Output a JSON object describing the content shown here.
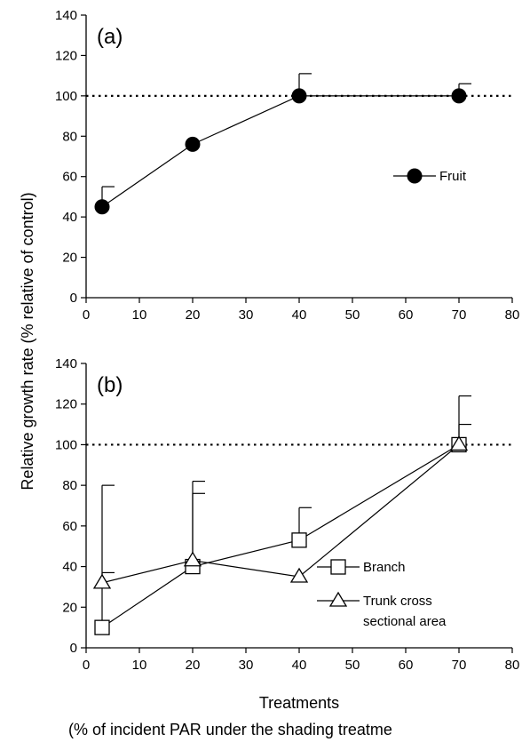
{
  "figure": {
    "ylabel": "Relative growth rate (% relative of control)",
    "xlabel_line1": "Treatments",
    "xlabel_line2": "(% of incident PAR under the shading treatme"
  },
  "chart_data": [
    {
      "type": "line",
      "panel_label": "(a)",
      "xlim": [
        0,
        80
      ],
      "ylim": [
        0,
        140
      ],
      "xticks": [
        0,
        10,
        20,
        30,
        40,
        50,
        60,
        70,
        80
      ],
      "yticks": [
        0,
        20,
        40,
        60,
        80,
        100,
        120,
        140
      ],
      "reference_line": 100,
      "series": [
        {
          "name": "Fruit",
          "marker": "filled-circle",
          "x": [
            3,
            20,
            40,
            70
          ],
          "y": [
            45,
            76,
            100,
            100
          ],
          "err_upper": [
            55,
            null,
            111,
            106
          ]
        }
      ]
    },
    {
      "type": "line",
      "panel_label": "(b)",
      "xlim": [
        0,
        80
      ],
      "ylim": [
        0,
        140
      ],
      "xticks": [
        0,
        10,
        20,
        30,
        40,
        50,
        60,
        70,
        80
      ],
      "yticks": [
        0,
        20,
        40,
        60,
        80,
        100,
        120,
        140
      ],
      "reference_line": 100,
      "series": [
        {
          "name": "Branch",
          "marker": "open-square",
          "x": [
            3,
            20,
            40,
            70
          ],
          "y": [
            10,
            40,
            53,
            100
          ],
          "err_upper": [
            80,
            82,
            69,
            124
          ]
        },
        {
          "name": "Trunk cross sectional area",
          "legend_lines": [
            "Trunk cross",
            "sectional area"
          ],
          "marker": "open-triangle",
          "x": [
            3,
            20,
            40,
            70
          ],
          "y": [
            32,
            43,
            35,
            100
          ],
          "err_upper": [
            37,
            76,
            null,
            110
          ]
        }
      ]
    }
  ]
}
